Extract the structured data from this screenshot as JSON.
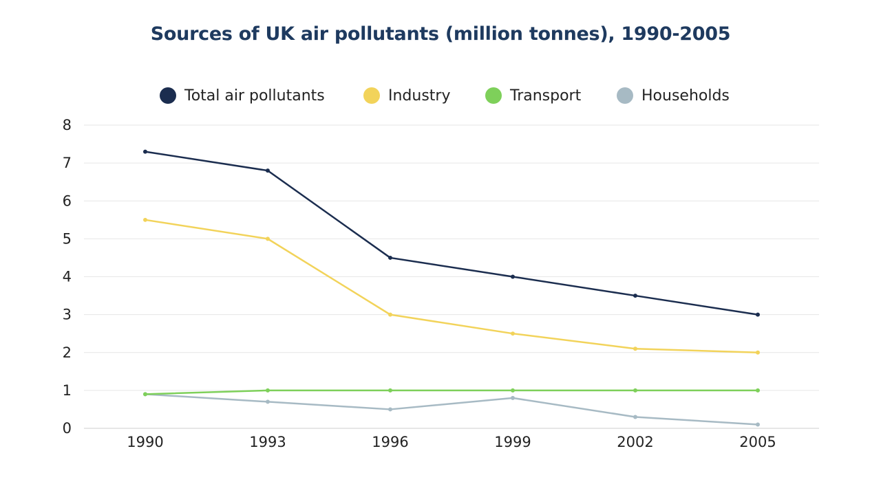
{
  "chart_data": {
    "type": "line",
    "title": "Sources of UK air pollutants (million tonnes), 1990-2005",
    "xlabel": "",
    "ylabel": "",
    "x": [
      "1990",
      "1993",
      "1996",
      "1999",
      "2002",
      "2005"
    ],
    "ylim": [
      0,
      8
    ],
    "yticks": [
      "0",
      "1",
      "2",
      "3",
      "4",
      "5",
      "6",
      "7",
      "8"
    ],
    "grid": true,
    "legend_position": "top",
    "series": [
      {
        "name": "Total air pollutants",
        "color": "#1b2d4f",
        "values": [
          7.3,
          6.8,
          4.5,
          4.0,
          3.5,
          3.0
        ]
      },
      {
        "name": "Industry",
        "color": "#f2d35a",
        "values": [
          5.5,
          5.0,
          3.0,
          2.5,
          2.1,
          2.0
        ]
      },
      {
        "name": "Transport",
        "color": "#7ed05a",
        "values": [
          0.9,
          1.0,
          1.0,
          1.0,
          1.0,
          1.0
        ]
      },
      {
        "name": "Households",
        "color": "#a7bac4",
        "values": [
          0.9,
          0.7,
          0.5,
          0.8,
          0.3,
          0.1
        ]
      }
    ]
  }
}
